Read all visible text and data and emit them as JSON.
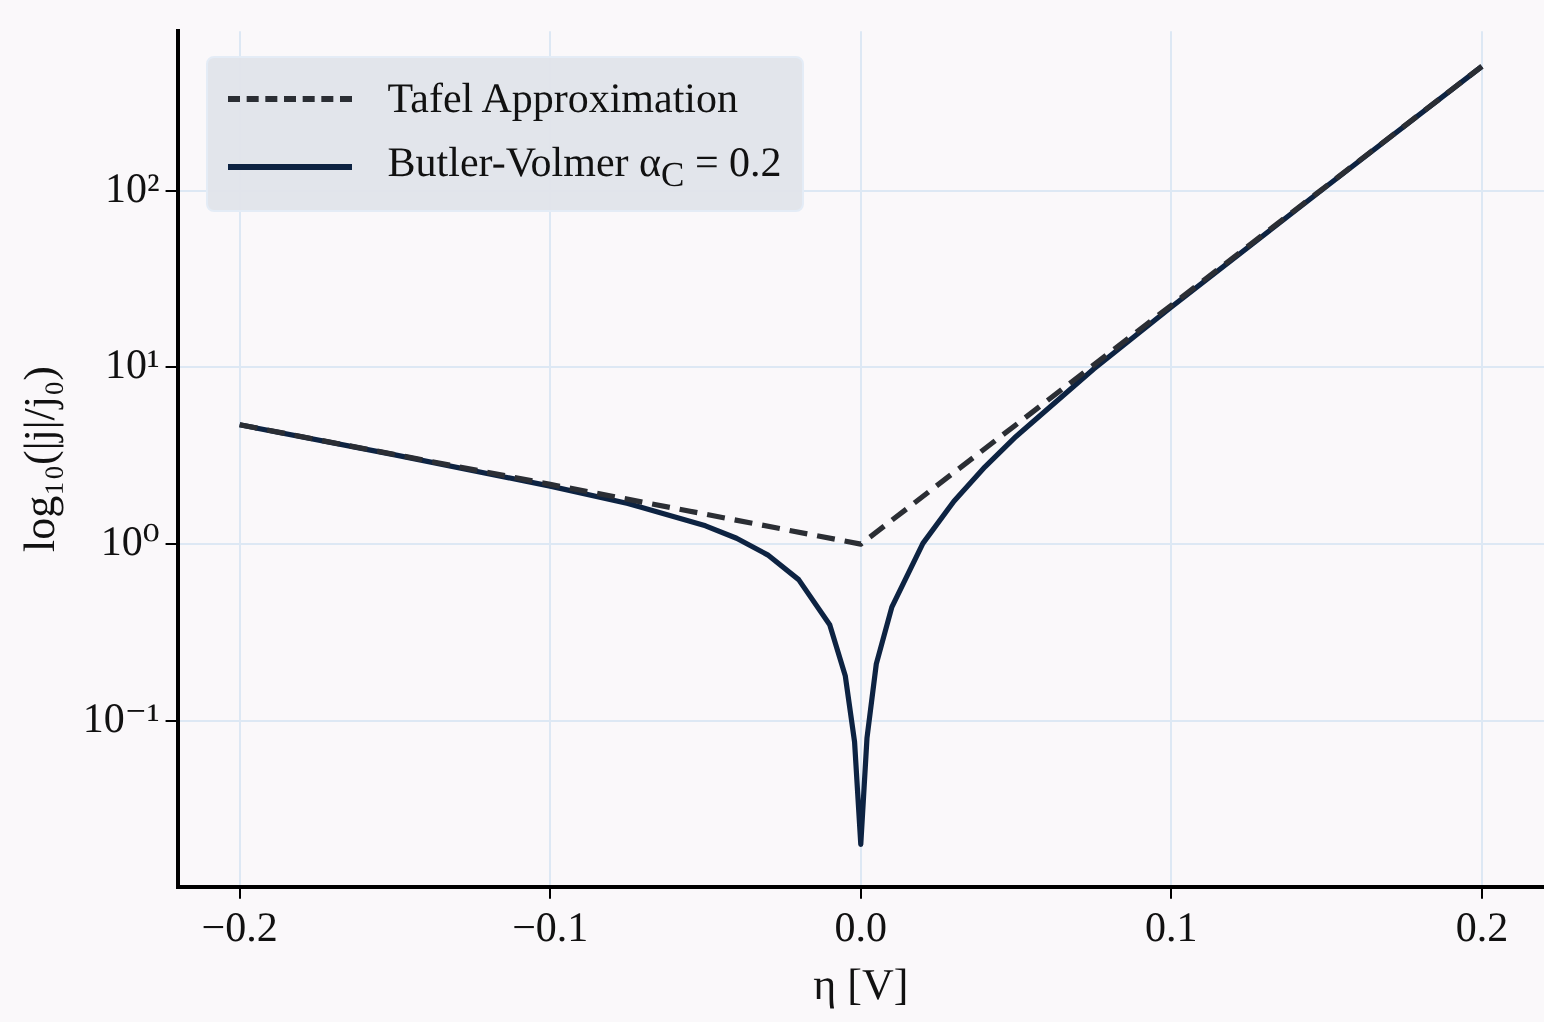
{
  "chart_data": {
    "type": "line",
    "xlabel": "η [V]",
    "ylabel": "log₁₀(|j|/j₀)",
    "log": "y",
    "grid": true,
    "legend": "top left",
    "xlim": [
      -0.22,
      0.22
    ],
    "xticks": [
      {
        "value": -0.2,
        "label": "−0.2"
      },
      {
        "value": -0.1,
        "label": "−0.1"
      },
      {
        "value": 0,
        "label": "0.0"
      },
      {
        "value": 0.1,
        "label": "0.1"
      },
      {
        "value": 0.2,
        "label": "0.2"
      }
    ],
    "ylim": [
      0.0115,
      800
    ],
    "yticks": [
      {
        "value": 0.1,
        "label": "10⁻¹"
      },
      {
        "value": 1,
        "label": "10⁰"
      },
      {
        "value": 10,
        "label": "10¹"
      },
      {
        "value": 100,
        "label": "10²"
      }
    ],
    "series": [
      {
        "name": "Tafel Approximation",
        "color": "#2b2e34",
        "line_style": "dashed",
        "x": [
          -0.2,
          -0.1,
          0,
          0.1,
          0.2
        ],
        "values": [
          4.74,
          2.18,
          1,
          22.5,
          506
        ]
      },
      {
        "name": "Butler-Volmer α$_{C}$ = 0.2",
        "color": "#0d2342",
        "line_style": "solid",
        "x": [
          -0.2,
          -0.15,
          -0.1,
          -0.075,
          -0.05,
          -0.04,
          -0.03,
          -0.02,
          -0.01,
          -0.005,
          -0.002,
          0,
          0.002,
          0.005,
          0.01,
          0.02,
          0.03,
          0.04,
          0.05,
          0.075,
          0.1,
          0.15,
          0.2
        ],
        "values": [
          4.74,
          3.2,
          2.13,
          1.7,
          1.27,
          1.08,
          0.87,
          0.63,
          0.35,
          0.18,
          0.076,
          0.02,
          0.08,
          0.21,
          0.44,
          1.01,
          1.75,
          2.74,
          4.07,
          9.8,
          22,
          106,
          506
        ]
      }
    ]
  }
}
